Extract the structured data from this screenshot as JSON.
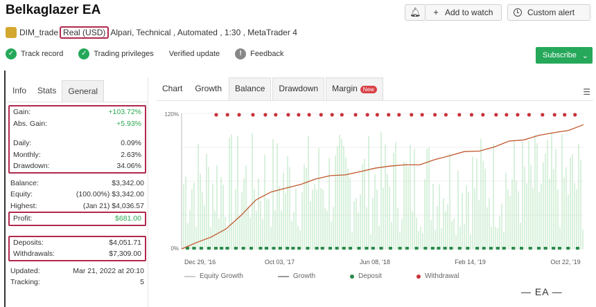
{
  "header": {
    "title": "Belkaglazer EA",
    "watch_label": "Add to watch",
    "custom_label": "Custom alert"
  },
  "meta": {
    "user": "DIM_trade",
    "account_type": "Real (USD)",
    "broker": "Alpari",
    "details": ", Technical , Automated , 1:30 , MetaTrader 4"
  },
  "badges": [
    {
      "label": "Track record",
      "color": "#26a85a",
      "icon": "check-icon"
    },
    {
      "label": "Trading privileges",
      "color": "#26a85a",
      "icon": "check-icon"
    },
    {
      "label": "Verified update",
      "color": "#ffffff",
      "icon": "none"
    },
    {
      "label": "Feedback",
      "color": "#888888",
      "icon": "exclamation-icon"
    }
  ],
  "subscribe_label": "Subscribe",
  "stats": {
    "tabs": [
      "Info",
      "Stats",
      "General"
    ],
    "group1": [
      {
        "label": "Gain:",
        "value": "+103.72%",
        "green": true
      },
      {
        "label": "Abs. Gain:",
        "value": "+5.93%",
        "green": true
      }
    ],
    "group1b": [
      {
        "label": "Daily:",
        "value": "0.09%",
        "green": false
      },
      {
        "label": "Monthly:",
        "value": "2.63%",
        "green": false
      },
      {
        "label": "Drawdown:",
        "value": "34.06%",
        "green": false
      }
    ],
    "plain1": [
      {
        "label": "Balance:",
        "value": "$3,342.00"
      },
      {
        "label": "Equity:",
        "value": "(100.00%) $3,342.00"
      },
      {
        "label": "Highest:",
        "value": "(Jan 21) $4,036.57"
      }
    ],
    "profit": {
      "label": "Profit:",
      "value": "$681.00"
    },
    "group3": [
      {
        "label": "Deposits:",
        "value": "$4,051.71"
      },
      {
        "label": "Withdrawals:",
        "value": "$7,309.00"
      }
    ],
    "plain2": [
      {
        "label": "Updated:",
        "value": "Mar 21, 2022 at 20:10"
      },
      {
        "label": "Tracking:",
        "value": "5"
      }
    ]
  },
  "chart": {
    "tabs": [
      "Chart",
      "Growth",
      "Balance",
      "Drawdown",
      "Margin"
    ],
    "margin_badge": "New",
    "legend": [
      "Equity Growth",
      "Growth",
      "Deposit",
      "Withdrawal"
    ],
    "colors": {
      "growth": "#c0562a",
      "equity": "#e09a3a",
      "bars": "#8fd79a",
      "deposit": "#2a8a4a",
      "withdrawal": "#c8323a"
    }
  },
  "chart_data": {
    "type": "line",
    "ylabel": "",
    "ytick_labels": [
      "120%",
      "0%"
    ],
    "xtick_labels": [
      "Dec 29, '16",
      "Oct 03, '17",
      "Jun 08, '18",
      "Feb 14, '19",
      "Oct 22, '19"
    ],
    "ylim": [
      0,
      120
    ],
    "series": [
      {
        "values": [
          0,
          5,
          10,
          18,
          30,
          42,
          50,
          55,
          58,
          62,
          65,
          66,
          68,
          70,
          72,
          74,
          76,
          80,
          84,
          86,
          88,
          90,
          94,
          98,
          100,
          102,
          104,
          110
        ]
      }
    ]
  },
  "footer_mark": "— EA —"
}
